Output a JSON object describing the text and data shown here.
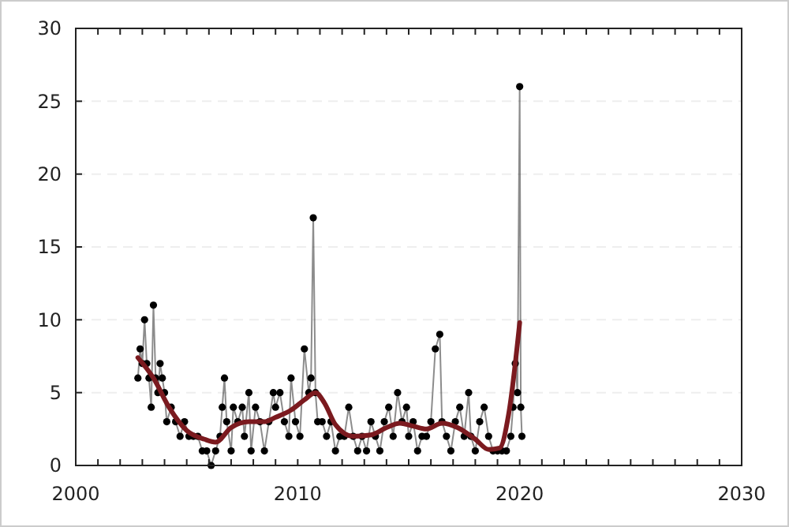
{
  "chart_data": {
    "type": "line",
    "xlim": [
      2000,
      2030
    ],
    "ylim": [
      0,
      30
    ],
    "xticks": [
      2000,
      {
        "value": 2001,
        "label": null
      },
      {
        "value": 2002,
        "label": null
      },
      {
        "value": 2003,
        "label": null
      },
      {
        "value": 2004,
        "label": null
      },
      {
        "value": 2005,
        "label": null
      },
      {
        "value": 2006,
        "label": null
      },
      {
        "value": 2007,
        "label": null
      },
      {
        "value": 2008,
        "label": null
      },
      {
        "value": 2009,
        "label": null
      },
      2010,
      {
        "value": 2011,
        "label": null
      },
      {
        "value": 2012,
        "label": null
      },
      {
        "value": 2013,
        "label": null
      },
      {
        "value": 2014,
        "label": null
      },
      {
        "value": 2015,
        "label": null
      },
      {
        "value": 2016,
        "label": null
      },
      {
        "value": 2017,
        "label": null
      },
      {
        "value": 2018,
        "label": null
      },
      {
        "value": 2019,
        "label": null
      },
      2020,
      {
        "value": 2021,
        "label": null
      },
      {
        "value": 2022,
        "label": null
      },
      {
        "value": 2023,
        "label": null
      },
      {
        "value": 2024,
        "label": null
      },
      {
        "value": 2025,
        "label": null
      },
      {
        "value": 2026,
        "label": null
      },
      {
        "value": 2027,
        "label": null
      },
      {
        "value": 2028,
        "label": null
      },
      {
        "value": 2029,
        "label": null
      },
      2030
    ],
    "yticks": [
      0,
      5,
      10,
      15,
      20,
      25,
      30
    ],
    "grid": "y",
    "series": [
      {
        "color": "#000000",
        "marker": "circle",
        "x": [
          2002.8,
          2002.9,
          2003.0,
          2003.1,
          2003.2,
          2003.3,
          2003.4,
          2003.5,
          2003.6,
          2003.7,
          2003.8,
          2003.9,
          2004.0,
          2004.1,
          2004.3,
          2004.5,
          2004.7,
          2004.9,
          2005.1,
          2005.3,
          2005.5,
          2005.7,
          2005.9,
          2006.1,
          2006.3,
          2006.5,
          2006.6,
          2006.7,
          2006.8,
          2007.0,
          2007.1,
          2007.3,
          2007.5,
          2007.6,
          2007.8,
          2007.9,
          2008.1,
          2008.3,
          2008.5,
          2008.7,
          2008.9,
          2009.0,
          2009.2,
          2009.4,
          2009.6,
          2009.7,
          2009.9,
          2010.1,
          2010.3,
          2010.5,
          2010.6,
          2010.7,
          2010.8,
          2010.9,
          2011.1,
          2011.3,
          2011.5,
          2011.7,
          2011.9,
          2012.1,
          2012.3,
          2012.5,
          2012.7,
          2012.9,
          2013.1,
          2013.3,
          2013.5,
          2013.7,
          2013.9,
          2014.1,
          2014.3,
          2014.5,
          2014.7,
          2014.9,
          2015.0,
          2015.2,
          2015.4,
          2015.6,
          2015.8,
          2016.0,
          2016.2,
          2016.4,
          2016.5,
          2016.7,
          2016.9,
          2017.1,
          2017.3,
          2017.5,
          2017.7,
          2017.8,
          2018.0,
          2018.2,
          2018.4,
          2018.6,
          2018.8,
          2019.0,
          2019.2,
          2019.4,
          2019.6,
          2019.7,
          2019.8,
          2019.9,
          2020.0,
          2020.05,
          2020.1
        ],
        "values": [
          6,
          8,
          7,
          10,
          7,
          6,
          4,
          11,
          6,
          5,
          7,
          6,
          5,
          3,
          4,
          3,
          2,
          3,
          2,
          2,
          2,
          1,
          1,
          0,
          1,
          2,
          4,
          6,
          3,
          1,
          4,
          3,
          4,
          2,
          5,
          1,
          4,
          3,
          1,
          3,
          5,
          4,
          5,
          3,
          2,
          6,
          3,
          2,
          8,
          5,
          6,
          17,
          5,
          3,
          3,
          2,
          3,
          1,
          2,
          2,
          4,
          2,
          1,
          2,
          1,
          3,
          2,
          1,
          3,
          4,
          2,
          5,
          3,
          4,
          2,
          3,
          1,
          2,
          2,
          3,
          8,
          9,
          3,
          2,
          1,
          3,
          4,
          2,
          5,
          2,
          1,
          3,
          4,
          2,
          1,
          1,
          1,
          1,
          2,
          4,
          7,
          5,
          26,
          4,
          2
        ]
      },
      {
        "color": "#7b1a1f",
        "marker": "none",
        "x": [
          2002.8,
          2003.5,
          2004.2,
          2005.0,
          2005.8,
          2006.3,
          2007.0,
          2007.8,
          2008.5,
          2009.0,
          2009.7,
          2010.3,
          2010.8,
          2011.2,
          2011.7,
          2012.5,
          2013.3,
          2014.0,
          2014.6,
          2015.2,
          2015.8,
          2016.5,
          2017.2,
          2018.0,
          2018.6,
          2019.1,
          2019.5,
          2020.0
        ],
        "values": [
          7.4,
          6,
          4,
          2.4,
          1.8,
          1.6,
          2.6,
          3,
          3,
          3.3,
          3.8,
          4.5,
          5,
          4.3,
          2.8,
          2,
          2.1,
          2.6,
          2.9,
          2.7,
          2.5,
          2.9,
          2.6,
          1.8,
          1.1,
          1.2,
          3.5,
          9.8
        ]
      }
    ]
  }
}
